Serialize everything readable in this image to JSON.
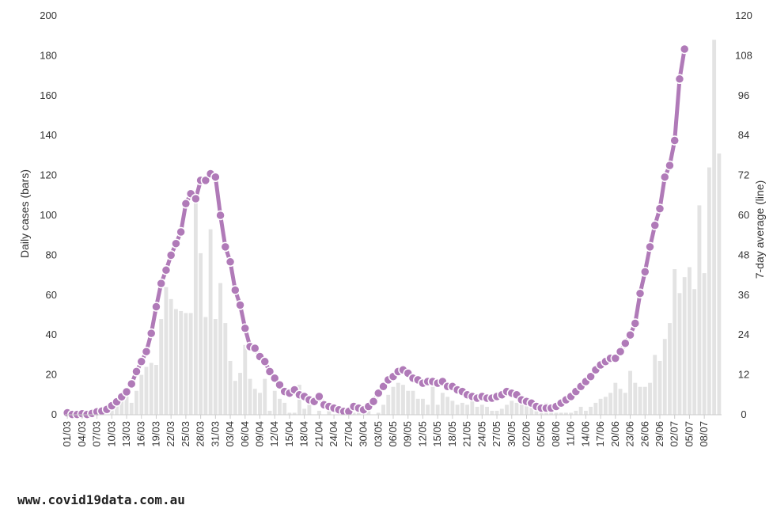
{
  "footer": {
    "site_url": "www.covid19data.com.au"
  },
  "colors": {
    "bars": "#e3e3e3",
    "line": "#b07ab8",
    "axis": "#cccccc",
    "text": "#333333"
  },
  "chart_data": {
    "type": "bar+line",
    "ylabel_left": "Daily cases (bars)",
    "ylabel_right": "7-day average (line)",
    "ylim_left": [
      0,
      200
    ],
    "ylim_right": [
      0,
      120
    ],
    "yticks_left": [
      "0",
      "20",
      "40",
      "60",
      "80",
      "100",
      "120",
      "140",
      "160",
      "180",
      "200"
    ],
    "yticks_right": [
      "0",
      "12",
      "24",
      "36",
      "48",
      "60",
      "72",
      "84",
      "96",
      "108",
      "120"
    ],
    "x_tick_labels": [
      "01/03",
      "04/03",
      "07/03",
      "10/03",
      "13/03",
      "16/03",
      "19/03",
      "22/03",
      "25/03",
      "28/03",
      "31/03",
      "03/04",
      "06/04",
      "09/04",
      "12/04",
      "15/04",
      "18/04",
      "21/04",
      "24/04",
      "27/04",
      "30/04",
      "03/05",
      "06/05",
      "09/05",
      "12/05",
      "15/05",
      "18/05",
      "21/05",
      "24/05",
      "27/05",
      "30/05",
      "02/06",
      "05/06",
      "08/06",
      "11/06",
      "14/06",
      "17/06",
      "20/06",
      "23/06",
      "26/06",
      "29/06",
      "02/07",
      "05/07",
      "08/07"
    ],
    "series": [
      {
        "name": "Daily cases",
        "kind": "bar",
        "values": [
          0,
          0,
          0,
          0,
          0,
          0,
          1,
          2,
          3,
          4,
          5,
          8,
          10,
          6,
          12,
          20,
          24,
          26,
          25,
          48,
          64,
          58,
          53,
          52,
          51,
          51,
          111,
          81,
          49,
          93,
          48,
          66,
          46,
          27,
          17,
          21,
          35,
          18,
          13,
          11,
          18,
          2,
          12,
          8,
          6,
          1,
          1,
          15,
          3,
          5,
          0,
          2,
          0,
          2,
          0,
          0,
          1,
          0,
          1,
          1,
          2,
          3,
          0,
          1,
          5,
          10,
          14,
          16,
          15,
          12,
          12,
          8,
          8,
          5,
          14,
          5,
          11,
          9,
          7,
          5,
          6,
          5,
          7,
          4,
          5,
          4,
          2,
          2,
          3,
          5,
          7,
          6,
          6,
          5,
          5,
          3,
          2,
          6,
          2,
          1,
          1,
          1,
          1,
          2,
          4,
          2,
          4,
          6,
          8,
          9,
          11,
          16,
          13,
          11,
          22,
          16,
          14,
          14,
          16,
          30,
          27,
          38,
          46,
          73,
          61,
          69,
          74,
          63,
          105,
          71,
          124,
          188,
          131
        ],
        "y_axis": "left"
      },
      {
        "name": "7-day average",
        "kind": "line",
        "values": [
          0.6,
          0.1,
          0.1,
          0.3,
          0.1,
          0.4,
          0.9,
          1.1,
          1.6,
          2.7,
          3.9,
          5.4,
          6.9,
          9.3,
          13,
          16,
          19,
          24.5,
          32.5,
          39.5,
          43.5,
          48,
          51.5,
          55,
          63.5,
          66.5,
          65,
          70.5,
          70.5,
          72.5,
          71.5,
          60,
          50.5,
          46,
          37.5,
          33,
          26,
          20.5,
          20,
          17.5,
          16,
          13,
          11,
          9,
          7,
          6.5,
          7.5,
          6,
          5.5,
          4.5,
          4,
          5.5,
          3,
          2.5,
          2,
          1.5,
          1,
          1,
          2.5,
          2,
          1.5,
          2.5,
          4,
          6.5,
          8.5,
          10.5,
          11.5,
          13,
          13.5,
          12.5,
          11,
          10.5,
          9.5,
          10,
          10,
          9.5,
          10,
          8.5,
          8.5,
          7.5,
          7,
          6,
          5.5,
          5,
          5.5,
          5,
          5,
          5.5,
          6,
          7,
          6.5,
          6,
          4.5,
          4,
          3.5,
          2.5,
          2,
          2,
          2,
          2.5,
          3.5,
          4.5,
          5.5,
          7,
          8.5,
          10,
          11.5,
          13.5,
          15,
          16,
          17,
          17,
          19,
          21.5,
          24,
          27.5,
          36.5,
          43,
          50.5,
          57,
          62,
          71.5,
          75,
          82.5,
          101,
          110
        ],
        "y_axis": "right"
      }
    ],
    "grid": false,
    "legend": "none"
  }
}
